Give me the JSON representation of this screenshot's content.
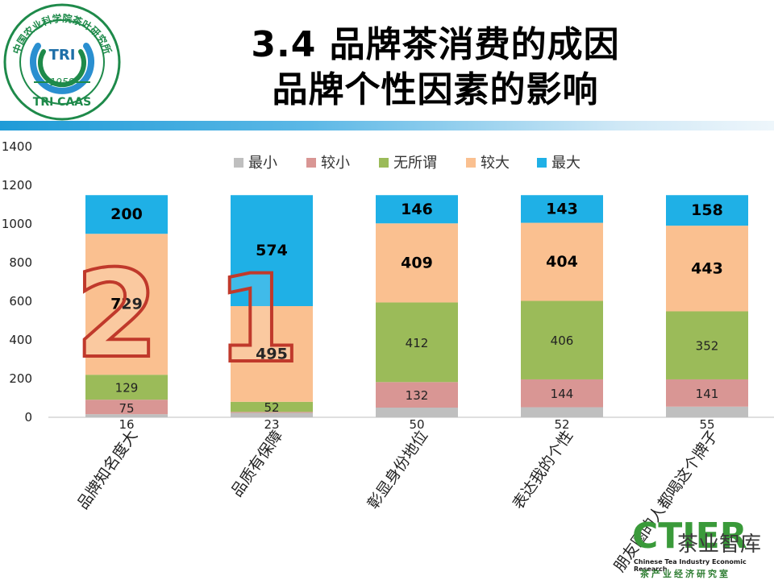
{
  "logo": {
    "ring_text": "中国农业科学院茶叶研究所",
    "center_text": "TRI",
    "year": "1958",
    "bottom_text": "TRI CAAS",
    "ring_color": "#1e8a4a"
  },
  "title": {
    "line1": "3.4 品牌茶消费的成因",
    "line2": "品牌个性因素的影响"
  },
  "watermark": {
    "brand": "CTIER",
    "overlay_text": "茶业智库",
    "english": "Chinese Tea Industry Economic Research",
    "chinese": "茶产业经济研究室"
  },
  "chart_data": {
    "type": "bar",
    "stacked": true,
    "categories": [
      "品牌知名度大",
      "品质有保障",
      "彰显身份地位",
      "表达我的个性",
      "朋友圈的人都喝这个牌子"
    ],
    "series": [
      {
        "name": "最小",
        "color": "#bfbfbf",
        "values": [
          16,
          23,
          50,
          52,
          55
        ]
      },
      {
        "name": "较小",
        "color": "#d99694",
        "values": [
          75,
          5,
          132,
          144,
          141
        ]
      },
      {
        "name": "无所谓",
        "color": "#9bbb59",
        "values": [
          129,
          52,
          412,
          406,
          352
        ]
      },
      {
        "name": "较大",
        "color": "#fac090",
        "values": [
          729,
          495,
          409,
          404,
          443
        ]
      },
      {
        "name": "最大",
        "color": "#1fb0e6",
        "values": [
          200,
          574,
          146,
          143,
          158
        ]
      }
    ],
    "ylim": [
      0,
      1400
    ],
    "yticks": [
      0,
      200,
      400,
      600,
      800,
      1000,
      1200,
      1400
    ],
    "grid": false,
    "legend": "top",
    "overlay_numerals": [
      "2",
      "1"
    ],
    "overlay_color": "#c0392b"
  }
}
